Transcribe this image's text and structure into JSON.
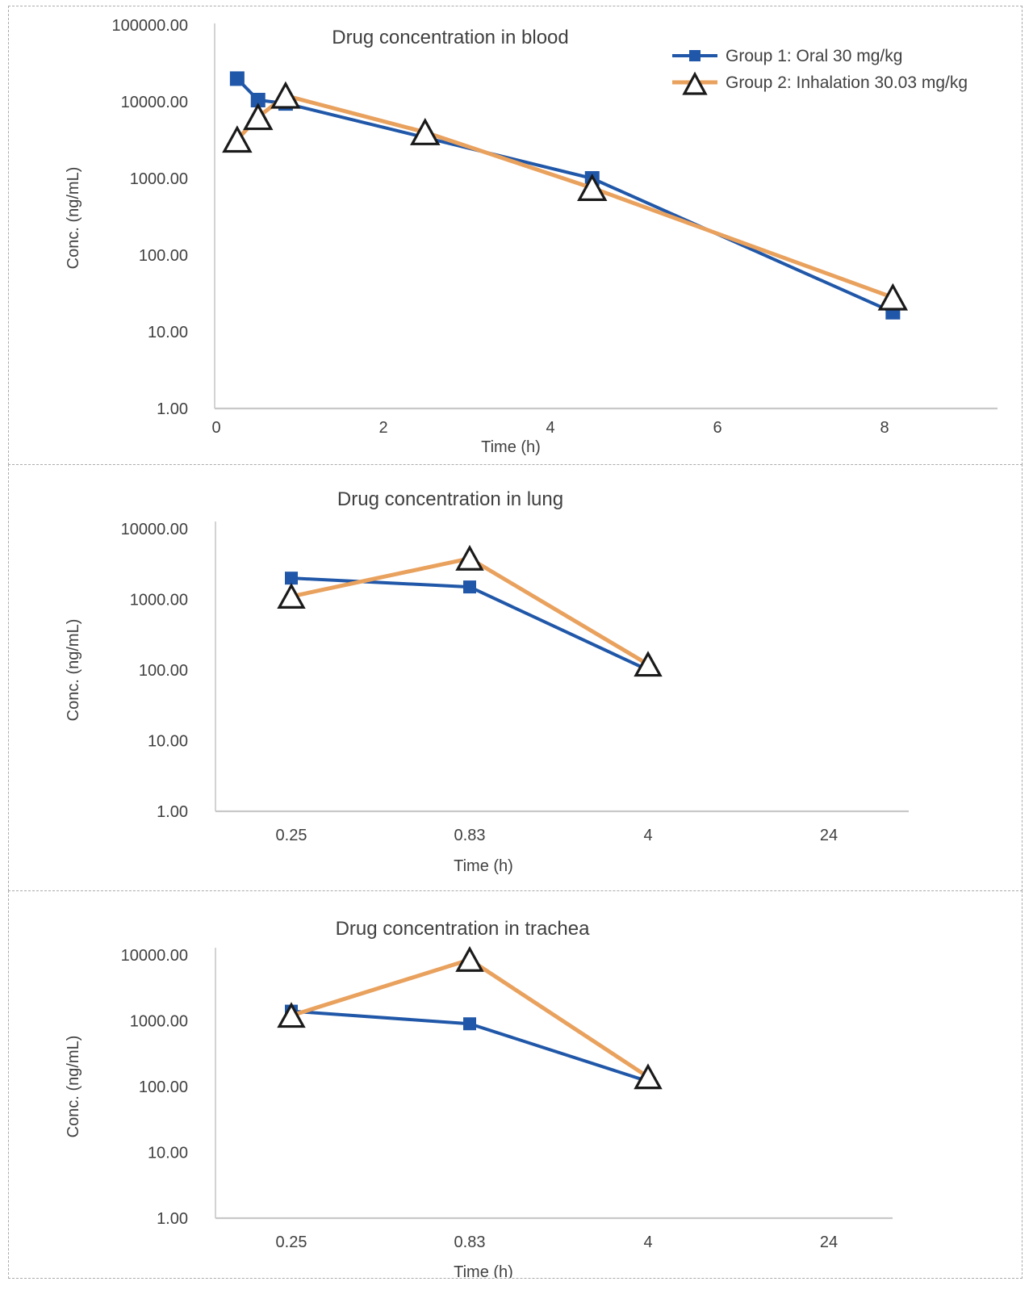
{
  "colors": {
    "group1_blue": "#2057A8",
    "group2_orange": "#E9A15E",
    "triangle_outline": "#1a1a1a",
    "triangle_fill": "#ffffff",
    "axis_gray": "#c8c8c8",
    "text_gray": "#404040"
  },
  "chart_data": [
    {
      "id": "blood",
      "type": "line",
      "title": "Drug concentration in blood",
      "xlabel": "Time (h)",
      "ylabel": "Conc. (ng/mL)",
      "x_axis": {
        "type": "linear",
        "ticks": [
          0,
          2,
          4,
          6,
          8
        ],
        "range": [
          0,
          8.4
        ]
      },
      "y_axis": {
        "type": "log",
        "range": [
          1,
          100000
        ],
        "ticks": [
          {
            "label": "100000.00",
            "value": 100000
          },
          {
            "label": "10000.00",
            "value": 10000
          },
          {
            "label": "1000.00",
            "value": 1000
          },
          {
            "label": "100.00",
            "value": 100
          },
          {
            "label": "10.00",
            "value": 10
          },
          {
            "label": "1.00",
            "value": 1
          }
        ]
      },
      "legend_visible": true,
      "legend_position": "top-right",
      "series": [
        {
          "name": "Group 1: Oral 30 mg/kg",
          "marker": "square",
          "x": [
            0.25,
            0.5,
            0.83,
            4.5,
            8.1
          ],
          "y": [
            20000,
            10500,
            9500,
            1000,
            18
          ]
        },
        {
          "name": "Group 2: Inhalation 30.03 mg/kg",
          "marker": "triangle",
          "x": [
            0.25,
            0.5,
            0.83,
            2.5,
            4.5,
            8.1
          ],
          "y": [
            3200,
            6300,
            12000,
            4000,
            750,
            28
          ]
        }
      ]
    },
    {
      "id": "lung",
      "type": "line",
      "title": "Drug concentration in lung",
      "xlabel": "Time (h)",
      "ylabel": "Conc. (ng/mL)",
      "x_axis": {
        "type": "category",
        "categories": [
          "0.25",
          "0.83",
          "4",
          "24"
        ]
      },
      "y_axis": {
        "type": "log",
        "range": [
          1,
          10000
        ],
        "ticks": [
          {
            "label": "10000.00",
            "value": 10000
          },
          {
            "label": "1000.00",
            "value": 1000
          },
          {
            "label": "100.00",
            "value": 100
          },
          {
            "label": "10.00",
            "value": 10
          },
          {
            "label": "1.00",
            "value": 1
          }
        ]
      },
      "legend_visible": false,
      "series": [
        {
          "name": "Group 1: Oral 30 mg/kg",
          "marker": "square",
          "x": [
            "0.25",
            "0.83",
            "4"
          ],
          "y": [
            2000,
            1500,
            100
          ]
        },
        {
          "name": "Group 2: Inhalation 30.03 mg/kg",
          "marker": "triangle",
          "x": [
            "0.25",
            "0.83",
            "4"
          ],
          "y": [
            1100,
            3800,
            120
          ]
        }
      ]
    },
    {
      "id": "trachea",
      "type": "line",
      "title": "Drug concentration in trachea",
      "xlabel": "Time (h)",
      "ylabel": "Conc. (ng/mL)",
      "x_axis": {
        "type": "category",
        "categories": [
          "0.25",
          "0.83",
          "4",
          "24"
        ]
      },
      "y_axis": {
        "type": "log",
        "range": [
          1,
          10000
        ],
        "ticks": [
          {
            "label": "10000.00",
            "value": 10000
          },
          {
            "label": "1000.00",
            "value": 1000
          },
          {
            "label": "100.00",
            "value": 100
          },
          {
            "label": "10.00",
            "value": 10
          },
          {
            "label": "1.00",
            "value": 1
          }
        ]
      },
      "legend_visible": false,
      "series": [
        {
          "name": "Group 1: Oral 30 mg/kg",
          "marker": "square",
          "x": [
            "0.25",
            "0.83",
            "4"
          ],
          "y": [
            1400,
            900,
            120
          ]
        },
        {
          "name": "Group 2: Inhalation 30.03 mg/kg",
          "marker": "triangle",
          "x": [
            "0.25",
            "0.83",
            "4"
          ],
          "y": [
            1200,
            8500,
            140
          ]
        }
      ]
    }
  ]
}
